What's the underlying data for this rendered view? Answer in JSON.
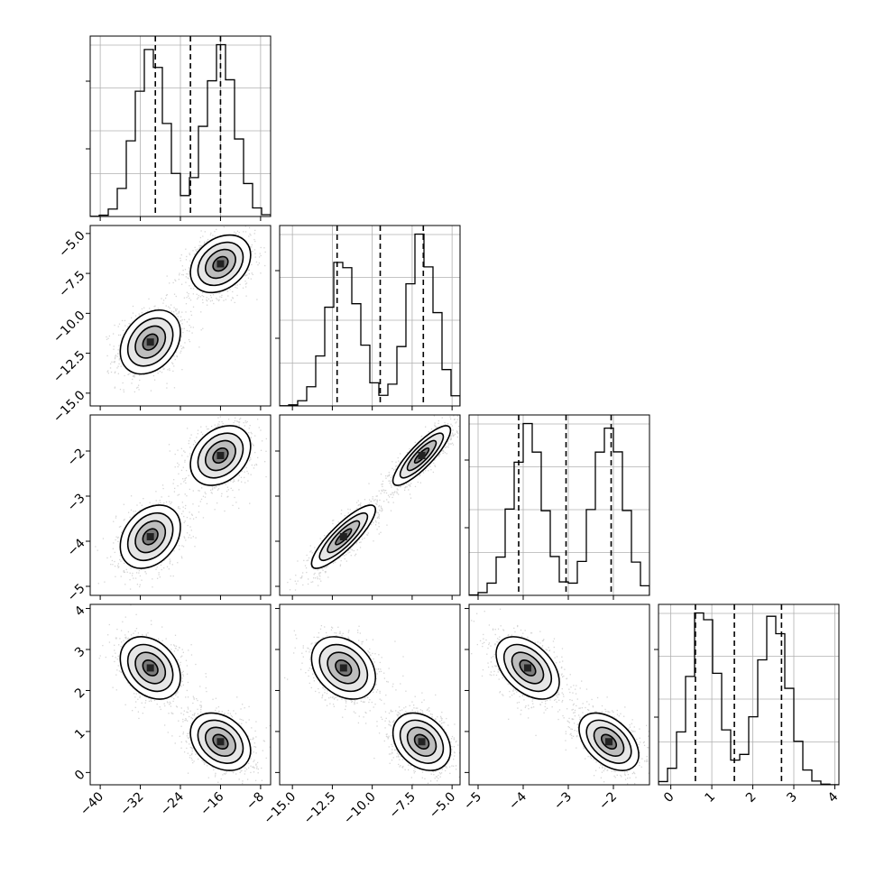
{
  "chart_data": {
    "type": "corner",
    "title": "",
    "grid": true,
    "parameters": [
      {
        "index": 0,
        "range": [
          -42,
          -6
        ],
        "ticks": [
          -40,
          -32,
          -24,
          -16,
          -8
        ],
        "tick_labels": [
          "−40",
          "−32",
          "−24",
          "−16",
          "−8"
        ],
        "modes": [
          {
            "mean": -30,
            "sd": 3.0,
            "weight": 0.5
          },
          {
            "mean": -16,
            "sd": 3.0,
            "weight": 0.5
          }
        ],
        "quantiles": [
          -29.0,
          -22.0,
          -16.0
        ]
      },
      {
        "index": 1,
        "range": [
          -15.8,
          -4.5
        ],
        "ticks": [
          -15.0,
          -12.5,
          -10.0,
          -7.5,
          -5.0
        ],
        "tick_labels": [
          "−15.0",
          "−12.5",
          "−10.0",
          "−7.5",
          "−5.0"
        ],
        "modes": [
          {
            "mean": -11.8,
            "sd": 1.0,
            "weight": 0.5
          },
          {
            "mean": -6.9,
            "sd": 0.9,
            "weight": 0.5
          }
        ],
        "quantiles": [
          -12.2,
          -9.5,
          -6.8
        ]
      },
      {
        "index": 2,
        "range": [
          -5.2,
          -1.2
        ],
        "ticks": [
          -5,
          -4,
          -3,
          -2
        ],
        "tick_labels": [
          "−5",
          "−4",
          "−3",
          "−2"
        ],
        "modes": [
          {
            "mean": -3.9,
            "sd": 0.35,
            "weight": 0.5
          },
          {
            "mean": -2.1,
            "sd": 0.33,
            "weight": 0.5
          }
        ],
        "quantiles": [
          -4.1,
          -3.05,
          -2.05
        ]
      },
      {
        "index": 3,
        "range": [
          -0.3,
          4.1
        ],
        "ticks": [
          0,
          1,
          2,
          3,
          4
        ],
        "tick_labels": [
          "0",
          "1",
          "2",
          "3",
          "4"
        ],
        "modes": [
          {
            "mean": 2.5,
            "sd": 0.38,
            "weight": 0.5
          },
          {
            "mean": 0.8,
            "sd": 0.35,
            "weight": 0.5
          }
        ],
        "quantiles": [
          0.6,
          1.55,
          2.7
        ]
      }
    ],
    "clusters": [
      {
        "center": [
          -30,
          -11.8,
          -3.9,
          2.55
        ],
        "sd": [
          3.0,
          1.0,
          0.35,
          0.38
        ]
      },
      {
        "center": [
          -16,
          -6.9,
          -2.1,
          0.75
        ],
        "sd": [
          3.0,
          0.9,
          0.33,
          0.35
        ]
      }
    ],
    "correlations": {
      "0-1": 0.3,
      "0-2": 0.3,
      "1-2": 0.85,
      "0-3": -0.3,
      "1-3": -0.3,
      "2-3": -0.45
    }
  }
}
